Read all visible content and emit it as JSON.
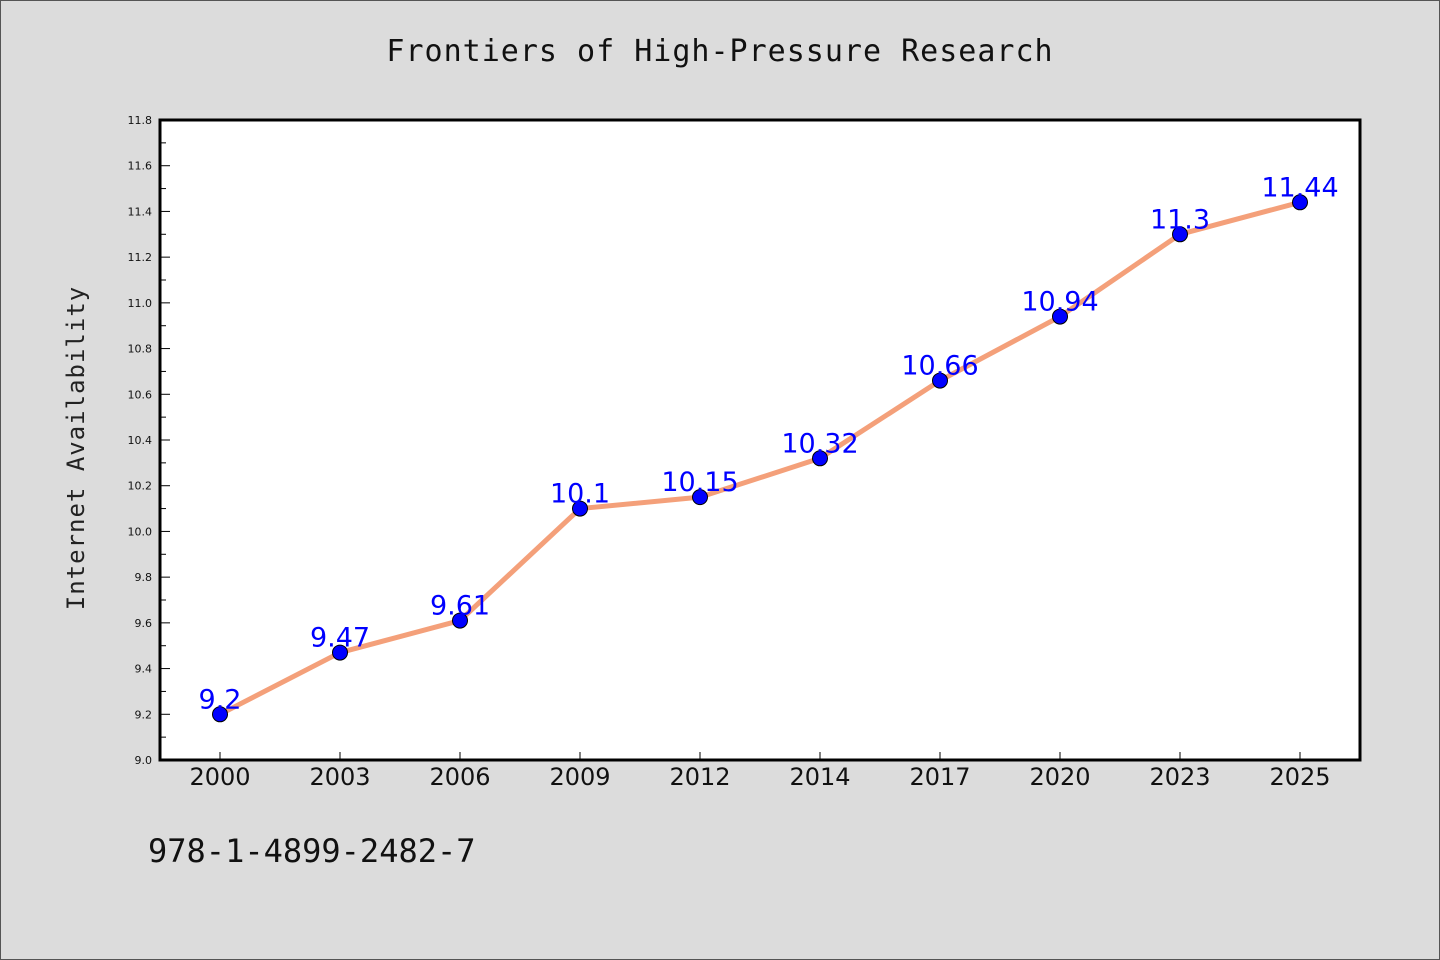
{
  "title": "Frontiers of High-Pressure Research",
  "footer_text": "978-1-4899-2482-7",
  "colors": {
    "background": "#dcdcdc",
    "plot_background": "#ffffff",
    "line": "#f4a07a",
    "marker": "#0000ff",
    "data_label": "#0000ff"
  },
  "chart_data": {
    "type": "line",
    "title": "Frontiers of High-Pressure Research",
    "xlabel": "",
    "ylabel": "Internet Availability",
    "categories": [
      "2000",
      "2003",
      "2006",
      "2009",
      "2012",
      "2014",
      "2017",
      "2020",
      "2023",
      "2025"
    ],
    "series": [
      {
        "values": [
          9.2,
          9.47,
          9.61,
          10.1,
          10.15,
          10.32,
          10.66,
          10.94,
          11.3,
          11.44
        ],
        "labels": [
          "9.2",
          "9.47",
          "9.61",
          "10.1",
          "10.15",
          "10.32",
          "10.66",
          "10.94",
          "11.3",
          "11.44"
        ]
      }
    ],
    "ylim": [
      9.0,
      11.8
    ],
    "yticks": [
      "9.0",
      "9.2",
      "9.4",
      "9.6",
      "9.8",
      "10.0",
      "10.2",
      "10.4",
      "10.6",
      "10.8",
      "11.0",
      "11.2",
      "11.4",
      "11.6",
      "11.8"
    ],
    "grid": false,
    "legend": "none"
  }
}
